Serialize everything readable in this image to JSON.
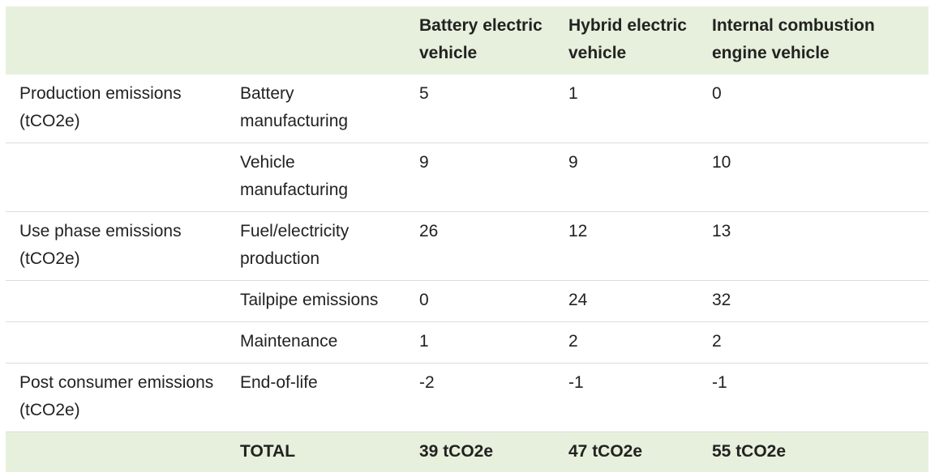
{
  "table": {
    "headers": [
      "",
      "",
      "Battery electric vehicle",
      "Hybrid electric vehicle",
      "Internal combustion engine vehicle"
    ],
    "rows": [
      [
        "Production emissions (tCO2e)",
        "Battery manufacturing",
        "5",
        "1",
        "0"
      ],
      [
        "",
        "Vehicle manufacturing",
        "9",
        "9",
        "10"
      ],
      [
        "Use phase emissions (tCO2e)",
        "Fuel/electricity production",
        "26",
        "12",
        "13"
      ],
      [
        "",
        "Tailpipe emissions",
        "0",
        "24",
        "32"
      ],
      [
        "",
        "Maintenance",
        "1",
        "2",
        "2"
      ],
      [
        "Post consumer emissions (tCO2e)",
        "End-of-life",
        "-2",
        "-1",
        "-1"
      ]
    ],
    "total": [
      "",
      "TOTAL",
      "39 tCO2e",
      "47 tCO2e",
      "55 tCO2e"
    ]
  },
  "colors": {
    "header_bg": "#e7f0dc",
    "row_border": "#dcdcdc",
    "text": "#222222"
  }
}
